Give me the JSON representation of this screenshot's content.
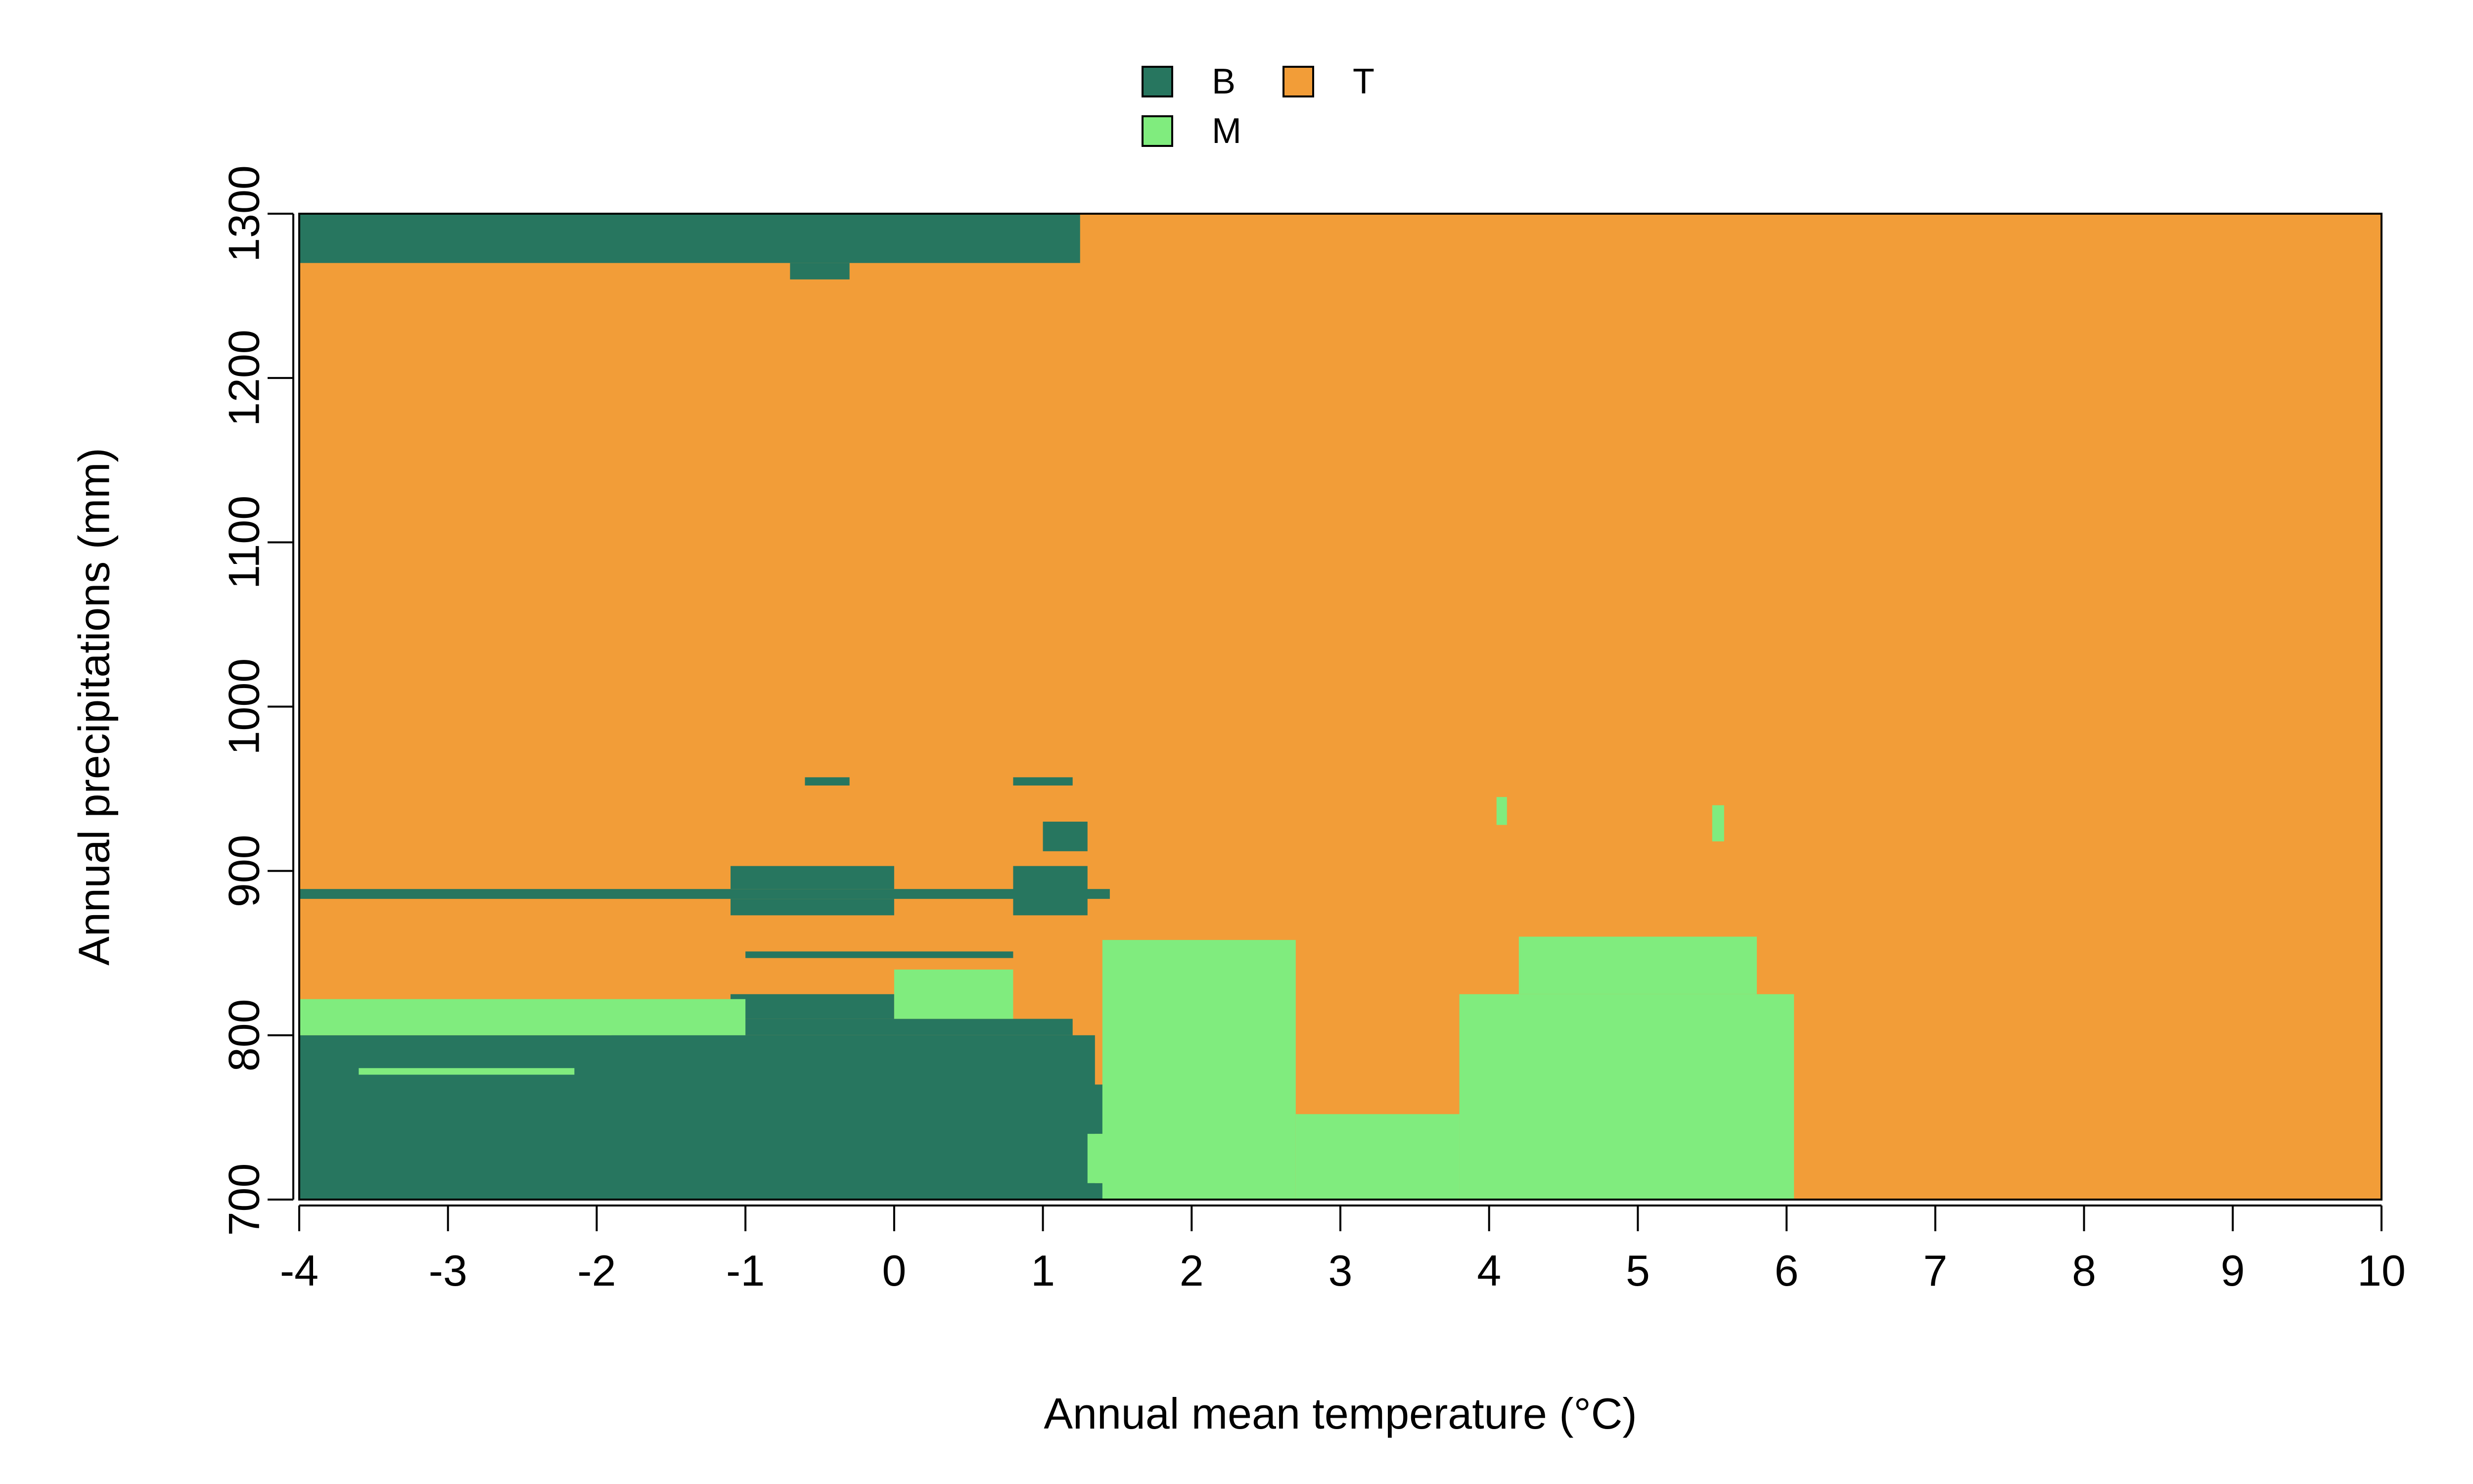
{
  "chart_data": {
    "type": "heatmap",
    "title": "",
    "xlabel": "Annual mean temperature (°C)",
    "ylabel": "Annual precipitations (mm)",
    "xlim": [
      -4,
      10
    ],
    "ylim": [
      700,
      1300
    ],
    "x_ticks": [
      "-4",
      "-3",
      "-2",
      "-1",
      "0",
      "1",
      "2",
      "3",
      "4",
      "5",
      "6",
      "7",
      "8",
      "9",
      "10"
    ],
    "y_ticks": [
      "700",
      "800",
      "900",
      "1000",
      "1100",
      "1200",
      "1300"
    ],
    "grid": false,
    "legend_position": "top-center",
    "background_class": "T",
    "classes": [
      {
        "name": "B",
        "color": "#27765f"
      },
      {
        "name": "T",
        "color": "#f29d38"
      },
      {
        "name": "M",
        "color": "#80ec7e"
      }
    ],
    "regions": [
      {
        "class": "B",
        "x": [
          -4.0,
          1.25
        ],
        "y": [
          1270,
          1300
        ]
      },
      {
        "class": "B",
        "x": [
          -0.7,
          -0.3
        ],
        "y": [
          1260,
          1270
        ]
      },
      {
        "class": "B",
        "x": [
          -4.0,
          1.45
        ],
        "y": [
          883,
          889
        ]
      },
      {
        "class": "B",
        "x": [
          -1.1,
          0.0
        ],
        "y": [
          889,
          903
        ]
      },
      {
        "class": "B",
        "x": [
          -1.1,
          0.0
        ],
        "y": [
          873,
          883
        ]
      },
      {
        "class": "B",
        "x": [
          0.8,
          1.3
        ],
        "y": [
          873,
          903
        ]
      },
      {
        "class": "B",
        "x": [
          1.0,
          1.3
        ],
        "y": [
          912,
          930
        ]
      },
      {
        "class": "B",
        "x": [
          -0.6,
          -0.3
        ],
        "y": [
          952,
          957
        ]
      },
      {
        "class": "B",
        "x": [
          0.8,
          1.2
        ],
        "y": [
          952,
          957
        ]
      },
      {
        "class": "B",
        "x": [
          -1.0,
          0.8
        ],
        "y": [
          847,
          851
        ]
      },
      {
        "class": "B",
        "x": [
          -4.0,
          1.35
        ],
        "y": [
          700,
          800
        ]
      },
      {
        "class": "B",
        "x": [
          -1.9,
          1.2
        ],
        "y": [
          800,
          810
        ]
      },
      {
        "class": "B",
        "x": [
          -1.1,
          0.0
        ],
        "y": [
          810,
          825
        ]
      },
      {
        "class": "B",
        "x": [
          1.3,
          1.45
        ],
        "y": [
          740,
          770
        ]
      },
      {
        "class": "B",
        "x": [
          1.3,
          1.45
        ],
        "y": [
          700,
          710
        ]
      },
      {
        "class": "M",
        "x": [
          -4.0,
          -1.0
        ],
        "y": [
          800,
          822
        ]
      },
      {
        "class": "M",
        "x": [
          0.0,
          0.8
        ],
        "y": [
          810,
          840
        ]
      },
      {
        "class": "M",
        "x": [
          1.4,
          2.7
        ],
        "y": [
          700,
          858
        ]
      },
      {
        "class": "M",
        "x": [
          1.3,
          1.45
        ],
        "y": [
          710,
          740
        ]
      },
      {
        "class": "M",
        "x": [
          2.7,
          3.8
        ],
        "y": [
          700,
          752
        ]
      },
      {
        "class": "M",
        "x": [
          3.8,
          6.05
        ],
        "y": [
          700,
          825
        ]
      },
      {
        "class": "M",
        "x": [
          4.2,
          5.8
        ],
        "y": [
          825,
          860
        ]
      },
      {
        "class": "M",
        "x": [
          -3.6,
          -2.15
        ],
        "y": [
          776,
          780
        ]
      },
      {
        "class": "M",
        "x": [
          4.05,
          4.12
        ],
        "y": [
          928,
          945
        ]
      },
      {
        "class": "M",
        "x": [
          5.5,
          5.58
        ],
        "y": [
          918,
          940
        ]
      }
    ]
  }
}
